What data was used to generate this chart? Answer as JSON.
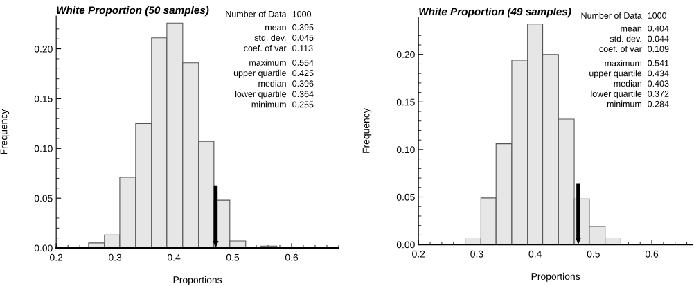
{
  "chart_data": [
    {
      "type": "histogram",
      "title": "White Proportion (50 samples)",
      "xlabel": "Proportions",
      "ylabel": "Frequency",
      "bins": [
        0.255,
        0.282,
        0.308,
        0.335,
        0.362,
        0.388,
        0.415,
        0.442,
        0.468,
        0.495,
        0.522,
        0.548,
        0.575
      ],
      "values": [
        0.005,
        0.013,
        0.071,
        0.125,
        0.211,
        0.226,
        0.186,
        0.107,
        0.048,
        0.007,
        0,
        0.002
      ],
      "color": "#e6e6e6",
      "xlim": [
        0.2,
        0.68
      ],
      "xticks": [
        0.2,
        0.3,
        0.4,
        0.5,
        0.6
      ],
      "ylim": [
        0,
        0.233
      ],
      "yticks": [
        {
          "value": 0,
          "label": "0.00"
        },
        {
          "value": 0.05,
          "label": "0.05"
        },
        {
          "value": 0.1,
          "label": "0.10"
        },
        {
          "value": 0.15,
          "label": "0.15"
        },
        {
          "value": 0.2,
          "label": "0.20"
        }
      ],
      "ref_lines": [
        {
          "axis": "x",
          "value": 0.471,
          "color": "#000000"
        }
      ],
      "annotations": [
        "Number of Data 1000",
        "mean 0.395",
        "std. dev. 0.045",
        "coef. of var 0.113",
        "maximum 0.554",
        "upper quartile 0.425",
        "median 0.396",
        "lower quartile 0.364",
        "minimum 0.255"
      ]
    },
    {
      "type": "histogram",
      "title": "White Proportion (49 samples)",
      "xlabel": "Proportions",
      "ylabel": "Frequency",
      "bins": [
        0.28,
        0.307,
        0.333,
        0.36,
        0.387,
        0.413,
        0.44,
        0.467,
        0.493,
        0.52,
        0.547
      ],
      "values": [
        0.007,
        0.049,
        0.106,
        0.194,
        0.232,
        0.2,
        0.132,
        0.048,
        0.019,
        0.007
      ],
      "color": "#e6e6e6",
      "xlim": [
        0.2,
        0.67
      ],
      "xticks": [
        0.2,
        0.3,
        0.4,
        0.5,
        0.6
      ],
      "ylim": [
        0,
        0.239
      ],
      "yticks": [
        {
          "value": 0,
          "label": "0.00"
        },
        {
          "value": 0.05,
          "label": "0.05"
        },
        {
          "value": 0.1,
          "label": "0.10"
        },
        {
          "value": 0.15,
          "label": "0.15"
        },
        {
          "value": 0.2,
          "label": "0.20"
        }
      ],
      "ref_lines": [
        {
          "axis": "x",
          "value": 0.474,
          "color": "#000000"
        }
      ],
      "annotations": [
        "Number of Data 1000",
        "mean 0.404",
        "std. dev. 0.044",
        "coef. of var 0.109",
        "maximum 0.541",
        "upper quartile 0.434",
        "median 0.403",
        "lower quartile 0.372",
        "minimum 0.284"
      ]
    }
  ]
}
